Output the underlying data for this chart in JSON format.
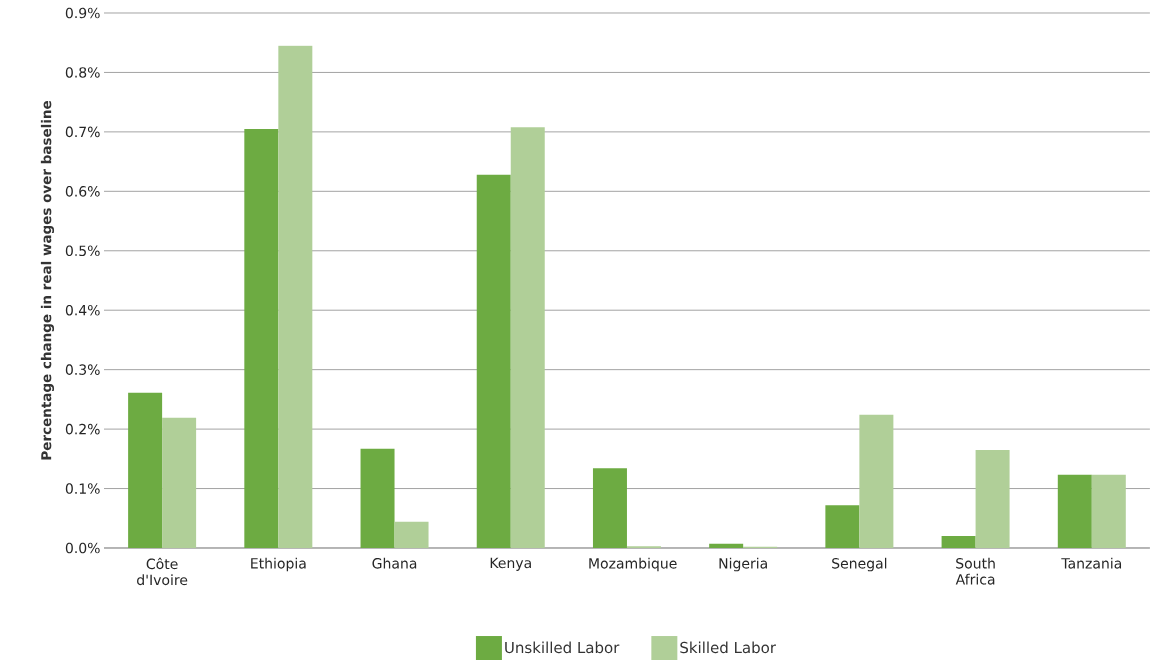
{
  "chart_data": {
    "type": "bar",
    "ylabel": "Percentage change in real wages over baseline",
    "categories": [
      "Côte d'Ivoire",
      "Ethiopia",
      "Ghana",
      "Kenya",
      "Mozambique",
      "Nigeria",
      "Senegal",
      "South Africa",
      "Tanzania"
    ],
    "series": [
      {
        "name": "Unskilled Labor",
        "color": "#6dab42",
        "values": [
          0.261,
          0.705,
          0.167,
          0.628,
          0.134,
          0.007,
          0.072,
          0.02,
          0.123
        ]
      },
      {
        "name": "Skilled Labor",
        "color": "#b0cf98",
        "values": [
          0.219,
          0.845,
          0.044,
          0.708,
          0.003,
          0.002,
          0.224,
          0.165,
          0.123
        ]
      }
    ],
    "ylim": [
      0,
      0.9
    ],
    "yticks": [
      {
        "value": 0,
        "label": "0.0%"
      },
      {
        "value": 0.1,
        "label": "0.1%"
      },
      {
        "value": 0.2,
        "label": "0.2%"
      },
      {
        "value": 0.3,
        "label": "0.3%"
      },
      {
        "value": 0.4,
        "label": "0.4%"
      },
      {
        "value": 0.5,
        "label": "0.5%"
      },
      {
        "value": 0.6,
        "label": "0.6%"
      },
      {
        "value": 0.7,
        "label": "0.7%"
      },
      {
        "value": 0.8,
        "label": "0.8%"
      },
      {
        "value": 0.9,
        "label": "0.9%"
      }
    ],
    "grid": "y",
    "legend": "bottom"
  }
}
